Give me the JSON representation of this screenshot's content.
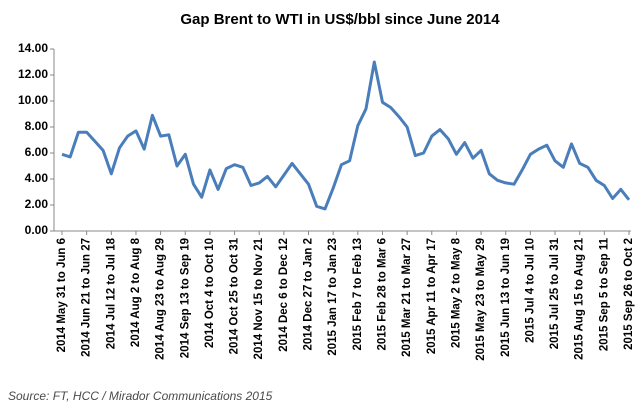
{
  "chart_data": {
    "type": "line",
    "title": "Gap Brent to WTI in US$/bbl since June 2014",
    "source": "Source: FT, HCC / Mirador Communications 2015",
    "categories": [
      "2014 May 31 to Jun 6",
      null,
      null,
      "2014 Jun 21 to Jun 27",
      null,
      null,
      "2014 Jul 12 to Jul 18",
      null,
      null,
      "2014 Aug 2 to Aug 8",
      null,
      null,
      "2014 Aug 23 to Aug 29",
      null,
      null,
      "2014 Sep 13 to Sep 19",
      null,
      null,
      "2014 Oct 4 to Oct 10",
      null,
      null,
      "2014 Oct 25 to Oct 31",
      null,
      null,
      "2014 Nov 15 to Nov 21",
      null,
      null,
      "2014 Dec 6 to Dec 12",
      null,
      null,
      "2014 Dec 27 to Jan 2",
      null,
      null,
      "2015 Jan 17 to Jan 23",
      null,
      null,
      "2015 Feb 7 to Feb 13",
      null,
      null,
      "2015 Feb 28 to Mar 6",
      null,
      null,
      "2015 Mar 21 to Mar 27",
      null,
      null,
      "2015 Apr 11 to Apr 17",
      null,
      null,
      "2015 May 2 to May 8",
      null,
      null,
      "2015 May 23 to May 29",
      null,
      null,
      "2015 Jun 13 to Jun 19",
      null,
      null,
      "2015 Jul 4 to Jul 10",
      null,
      null,
      "2015 Jul 25 to Jul 31",
      null,
      null,
      "2015 Aug 15 to Aug 21",
      null,
      null,
      "2015 Sep 5 to Sep 11",
      null,
      null,
      "2015 Sep 26 to Oct 2"
    ],
    "series": [
      {
        "name": "Gap Brent to WTI",
        "color": "#4a7ebb",
        "values": [
          5.9,
          5.7,
          7.6,
          7.6,
          6.9,
          6.2,
          4.4,
          6.4,
          7.3,
          7.7,
          6.3,
          8.9,
          7.3,
          7.4,
          5.0,
          5.9,
          3.6,
          2.6,
          4.7,
          3.2,
          4.8,
          5.1,
          4.9,
          3.5,
          3.7,
          4.2,
          3.4,
          4.3,
          5.2,
          4.4,
          3.6,
          1.9,
          1.7,
          3.3,
          5.1,
          5.4,
          8.1,
          9.4,
          13.0,
          9.9,
          9.5,
          8.8,
          8.0,
          5.8,
          6.0,
          7.3,
          7.8,
          7.1,
          5.9,
          6.8,
          5.6,
          6.2,
          4.4,
          3.9,
          3.7,
          3.6,
          4.7,
          5.9,
          6.3,
          6.6,
          5.4,
          4.9,
          6.7,
          5.2,
          4.9,
          3.9,
          3.5,
          2.5,
          3.2,
          2.4
        ]
      }
    ],
    "ylim": [
      0,
      14
    ],
    "yticks": [
      {
        "value": 0,
        "label": "0.00"
      },
      {
        "value": 2,
        "label": "2.00"
      },
      {
        "value": 4,
        "label": "4.00"
      },
      {
        "value": 6,
        "label": "6.00"
      },
      {
        "value": 8,
        "label": "8.00"
      },
      {
        "value": 10,
        "label": "10.00"
      },
      {
        "value": 12,
        "label": "12.00"
      },
      {
        "value": 14,
        "label": "14.00"
      }
    ],
    "grid": false
  }
}
